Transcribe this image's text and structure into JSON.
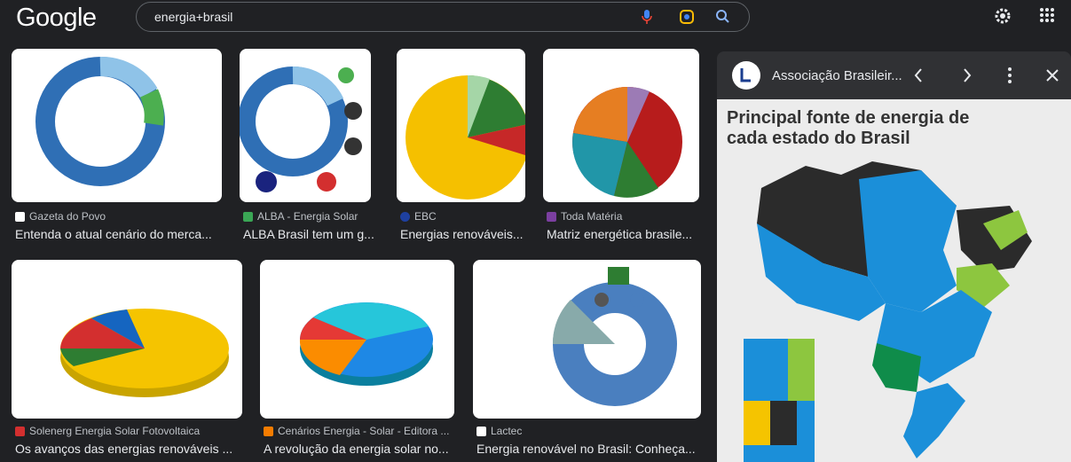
{
  "header": {
    "logo": "Google",
    "query": "energia+brasil"
  },
  "results": [
    {
      "source": "Gazeta do Povo",
      "caption": "Entenda o atual cenário do merca..."
    },
    {
      "source": "ALBA - Energia Solar",
      "caption": "ALBA Brasil tem um g..."
    },
    {
      "source": "EBC",
      "caption": "Energias renováveis..."
    },
    {
      "source": "Toda Matéria",
      "caption": "Matriz energética brasile..."
    },
    {
      "source": "Solenerg Energia Solar Fotovoltaica",
      "caption": "Os avanços das energias renováveis ..."
    },
    {
      "source": "Cenários Energia - Solar - Editora ...",
      "caption": "A revolução da energia solar no..."
    },
    {
      "source": "Lactec",
      "caption": "Energia renovável no Brasil: Conheça..."
    }
  ],
  "panel": {
    "site": "Associação Brasileir...",
    "image_title": "Principal fonte de energia de cada estado do Brasil"
  }
}
